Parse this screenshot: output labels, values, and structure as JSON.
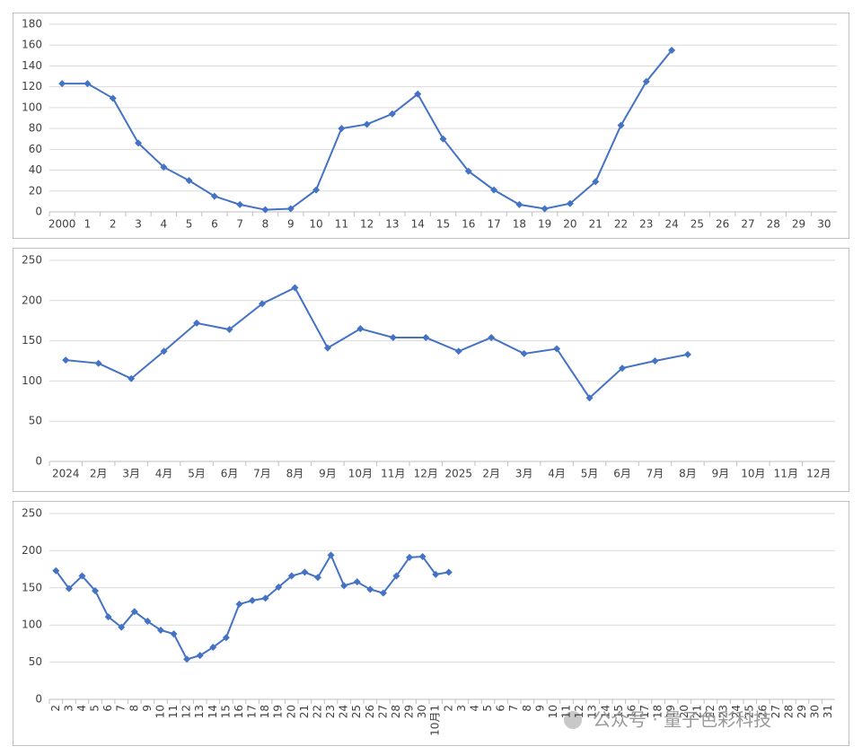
{
  "chart_data": [
    {
      "type": "line",
      "color": "#4472c4",
      "categories": [
        "2000",
        "1",
        "2",
        "3",
        "4",
        "5",
        "6",
        "7",
        "8",
        "9",
        "10",
        "11",
        "12",
        "13",
        "14",
        "15",
        "16",
        "17",
        "18",
        "19",
        "20",
        "21",
        "22",
        "23",
        "24",
        "25",
        "26",
        "27",
        "28",
        "29",
        "30"
      ],
      "values": [
        123,
        123,
        109,
        66,
        43,
        30,
        15,
        7,
        2,
        3,
        21,
        80,
        84,
        94,
        113,
        70,
        39,
        21,
        7,
        3,
        8,
        29,
        83,
        125,
        155,
        null,
        null,
        null,
        null,
        null,
        null
      ],
      "ylim": [
        0,
        180
      ],
      "yticks": [
        0,
        20,
        40,
        60,
        80,
        100,
        120,
        140,
        160,
        180
      ],
      "grid": true
    },
    {
      "type": "line",
      "color": "#4472c4",
      "categories": [
        "2024",
        "2月",
        "3月",
        "4月",
        "5月",
        "6月",
        "7月",
        "8月",
        "9月",
        "10月",
        "11月",
        "12月",
        "2025",
        "2月",
        "3月",
        "4月",
        "5月",
        "6月",
        "7月",
        "8月",
        "9月",
        "10月",
        "11月",
        "12月"
      ],
      "values": [
        126,
        122,
        103,
        137,
        172,
        164,
        196,
        216,
        141,
        165,
        154,
        154,
        137,
        154,
        134,
        140,
        79,
        116,
        125,
        133,
        null,
        null,
        null,
        null
      ],
      "ylim": [
        0,
        250
      ],
      "yticks": [
        0,
        50,
        100,
        150,
        200,
        250
      ],
      "grid": true
    },
    {
      "type": "line",
      "color": "#4472c4",
      "rotate_labels": true,
      "categories": [
        "2",
        "3",
        "4",
        "5",
        "6",
        "7",
        "8",
        "9",
        "10",
        "11",
        "12",
        "13",
        "14",
        "15",
        "16",
        "17",
        "18",
        "19",
        "20",
        "21",
        "22",
        "23",
        "24",
        "25",
        "26",
        "27",
        "28",
        "29",
        "30",
        "10月1",
        "2",
        "3",
        "4",
        "5",
        "6",
        "7",
        "8",
        "9",
        "10",
        "11",
        "12",
        "13",
        "14",
        "15",
        "16",
        "17",
        "18",
        "19",
        "20",
        "21",
        "22",
        "23",
        "24",
        "25",
        "26",
        "27",
        "28",
        "29",
        "30",
        "31"
      ],
      "values": [
        173,
        149,
        166,
        146,
        111,
        97,
        118,
        105,
        93,
        88,
        54,
        59,
        70,
        83,
        128,
        133,
        136,
        151,
        166,
        171,
        164,
        194,
        153,
        158,
        148,
        143,
        166,
        191,
        192,
        168,
        171,
        null,
        null,
        null,
        null,
        null,
        null,
        null,
        null,
        null,
        null,
        null,
        null,
        null,
        null,
        null,
        null,
        null,
        null,
        null,
        null,
        null,
        null,
        null,
        null,
        null,
        null,
        null,
        null,
        null
      ],
      "ylim": [
        0,
        250
      ],
      "yticks": [
        0,
        50,
        100,
        150,
        200,
        250
      ],
      "grid": true
    }
  ],
  "watermark": "公众号 · 量子色彩科技"
}
